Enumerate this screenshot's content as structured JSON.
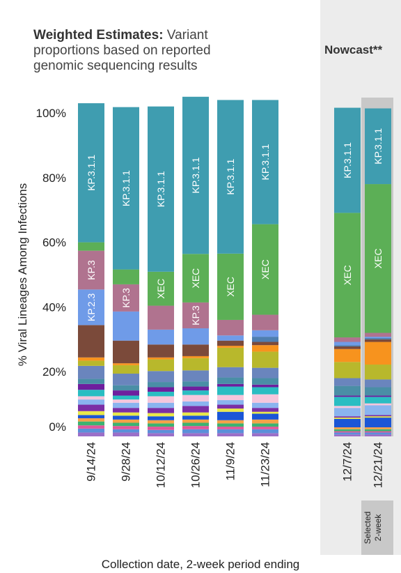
{
  "title_bold": "Weighted Estimates:",
  "title_rest": " Variant proportions based on reported genomic sequencing results",
  "nowcast_title": "Nowcast**",
  "selected_label": "Selected 2-week",
  "chart_data": {
    "type": "bar",
    "stacked": true,
    "xlabel": "Collection date, 2-week period ending",
    "ylabel": "% Viral Lineages Among Infections",
    "ylim": [
      0,
      100
    ],
    "yticks": [
      "0%",
      "20%",
      "40%",
      "60%",
      "80%",
      "100%"
    ],
    "categories": [
      "9/14/24",
      "9/28/24",
      "10/12/24",
      "10/26/24",
      "11/9/24",
      "11/23/24",
      "12/7/24",
      "12/21/24"
    ],
    "selected_category": "12/21/24",
    "series": [
      {
        "name": "",
        "color": "#9b6fc8",
        "values": [
          1.2,
          1.2,
          1.0,
          1.0,
          1.0,
          1.0,
          0.6,
          0.6
        ]
      },
      {
        "name": "",
        "color": "#5b8fd9",
        "values": [
          1.2,
          1.0,
          1.0,
          1.2,
          1.2,
          1.2,
          0.6,
          0.6
        ]
      },
      {
        "name": "",
        "color": "#e0569b",
        "values": [
          1.0,
          1.0,
          1.0,
          1.0,
          0.8,
          0.8,
          0.4,
          0.4
        ]
      },
      {
        "name": "",
        "color": "#3cb371",
        "values": [
          1.2,
          1.0,
          1.0,
          1.0,
          1.0,
          1.0,
          0.6,
          0.6
        ]
      },
      {
        "name": "",
        "color": "#f4a24a",
        "values": [
          1.0,
          1.0,
          1.0,
          1.0,
          1.0,
          1.2,
          0.6,
          0.6
        ]
      },
      {
        "name": "",
        "color": "#1b56d6",
        "values": [
          1.0,
          1.2,
          1.2,
          1.2,
          2.6,
          1.8,
          2.6,
          3.0
        ]
      },
      {
        "name": "",
        "color": "#e8e84a",
        "values": [
          1.2,
          1.0,
          1.0,
          1.0,
          1.0,
          0.6,
          0.4,
          0.4
        ]
      },
      {
        "name": "",
        "color": "#7b2fa5",
        "values": [
          2.0,
          1.4,
          1.6,
          2.0,
          1.2,
          1.2,
          0.4,
          0.4
        ]
      },
      {
        "name": "",
        "color": "#8ab4ef",
        "values": [
          1.6,
          1.6,
          1.6,
          1.4,
          1.4,
          1.6,
          2.6,
          3.0
        ]
      },
      {
        "name": "",
        "color": "#f5c6dc",
        "values": [
          1.0,
          1.0,
          2.0,
          2.0,
          1.6,
          2.6,
          0.6,
          0.6
        ]
      },
      {
        "name": "",
        "color": "#2abdc2",
        "values": [
          2.0,
          1.2,
          1.4,
          1.4,
          2.6,
          2.2,
          2.8,
          2.0
        ]
      },
      {
        "name": "",
        "color": "#6e1f9e",
        "values": [
          1.8,
          1.6,
          1.4,
          1.2,
          0.8,
          0.8,
          0.4,
          0.4
        ]
      },
      {
        "name": "",
        "color": "#4a8ea6",
        "values": [
          1.6,
          1.6,
          1.6,
          1.6,
          2.0,
          2.0,
          3.0,
          2.6
        ]
      },
      {
        "name": "",
        "color": "#6a85bd",
        "values": [
          4.0,
          3.6,
          3.4,
          3.4,
          3.2,
          3.2,
          2.4,
          2.4
        ]
      },
      {
        "name": "",
        "color": "#b8b82c",
        "values": [
          1.6,
          2.6,
          3.6,
          3.8,
          6.0,
          5.0,
          5.0,
          4.6
        ]
      },
      {
        "name": "",
        "color": "#f7931e",
        "values": [
          1.0,
          0.6,
          0.6,
          0.6,
          0.6,
          2.0,
          4.0,
          7.0
        ]
      },
      {
        "name": "",
        "color": "#7b4a3a",
        "values": [
          10.0,
          7.0,
          4.0,
          3.6,
          1.6,
          1.0,
          0.8,
          0.8
        ]
      },
      {
        "name": "",
        "color": "#4f7fb0",
        "values": [
          0,
          0,
          0,
          0,
          0,
          1.6,
          0.4,
          0.4
        ]
      },
      {
        "name": "KP.2.3",
        "color": "#6f9be8",
        "values": [
          11.0,
          9.0,
          4.6,
          5.0,
          1.6,
          2.0,
          1.0,
          0.4
        ]
      },
      {
        "name": "KP.3",
        "color": "#b0738f",
        "values": [
          12.0,
          8.4,
          7.4,
          8.0,
          4.8,
          4.8,
          1.4,
          1.2
        ]
      },
      {
        "name": "XEC",
        "color": "#5caf56",
        "values": [
          2.6,
          4.6,
          10.5,
          15.0,
          20.5,
          28.0,
          38.5,
          46.0
        ]
      },
      {
        "name": "KP.3.1.1",
        "color": "#3f9db0",
        "values": [
          43.0,
          50.2,
          51.1,
          48.6,
          47.5,
          38.4,
          32.5,
          23.4
        ]
      }
    ],
    "bar_labels": [
      [
        "KP.2.3",
        "KP.3",
        "KP.3.1.1"
      ],
      [
        "KP.3",
        "KP.3.1.1"
      ],
      [
        "XEC",
        "KP.3.1.1"
      ],
      [
        "KP.3",
        "XEC",
        "KP.3.1.1"
      ],
      [
        "XEC",
        "KP.3.1.1"
      ],
      [
        "XEC",
        "KP.3.1.1"
      ],
      [
        "XEC",
        "KP.3.1.1"
      ],
      [
        "XEC",
        "KP.3.1.1"
      ]
    ]
  }
}
